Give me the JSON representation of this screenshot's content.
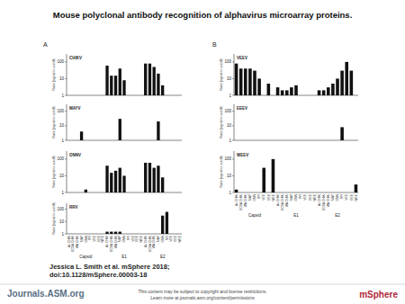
{
  "title": "Mouse polyclonal antibody recognition of alphavirus microarray proteins.",
  "panels": [
    "A",
    "B"
  ],
  "citation": [
    "Jessica L. Smith et al. mSphere 2018;",
    "doi:10.1128/mSphere.00003-18"
  ],
  "publisher": "Journals.ASM.org",
  "notice": [
    "This content may be subject to copyright and license restrictions.",
    "Learn more at journals.asm.org/content/permissions"
  ],
  "journal": "mSphere",
  "chart_data": [
    {
      "type": "bar",
      "title": "CHIKV",
      "y_label": "Ratio (signal-to-cutoff)",
      "log": "y",
      "color": "#111111",
      "tick_labels": "y",
      "categories": [
        "As CHIK",
        "ECSA CHIK",
        "WA CHIK",
        "MAY",
        "ONN",
        "RR",
        "VEE",
        "EEE",
        "WEE",
        "As CHIK",
        "ECSA CHIK",
        "WA CHIK",
        "MAY",
        "ONN",
        "RR",
        "VEE",
        "EEE",
        "WEE",
        "As CHIK",
        "ECSA CHIK",
        "WA CHIK",
        "MAY",
        "ONN",
        "RR",
        "VEE",
        "EEE",
        "WEE"
      ],
      "values": [
        1,
        1,
        1,
        1,
        1,
        1,
        1,
        1,
        1,
        60,
        15,
        15,
        40,
        8,
        1,
        1,
        1,
        1,
        80,
        80,
        50,
        20,
        4,
        1,
        1,
        1,
        1
      ],
      "ylim": [
        1,
        300
      ],
      "yticks": [
        1,
        10,
        100
      ]
    },
    {
      "type": "bar",
      "title": "MAYV",
      "y_label": "Ratio (signal-to-cutoff)",
      "log": "y",
      "color": "#111111",
      "tick_labels": "y",
      "categories": [
        "As CHIK",
        "ECSA CHIK",
        "WA CHIK",
        "MAY",
        "ONN",
        "RR",
        "VEE",
        "EEE",
        "WEE",
        "As CHIK",
        "ECSA CHIK",
        "WA CHIK",
        "MAY",
        "ONN",
        "RR",
        "VEE",
        "EEE",
        "WEE",
        "As CHIK",
        "ECSA CHIK",
        "WA CHIK",
        "MAY",
        "ONN",
        "RR",
        "VEE",
        "EEE",
        "WEE"
      ],
      "values": [
        1,
        1,
        1,
        4,
        1,
        1,
        1,
        1,
        1,
        1,
        1,
        1,
        30,
        1,
        1,
        1,
        1,
        1,
        1,
        1,
        1,
        20,
        1,
        1,
        1,
        1,
        1
      ],
      "ylim": [
        1,
        300
      ],
      "yticks": [
        1,
        10,
        100
      ]
    },
    {
      "type": "bar",
      "title": "ONNV",
      "y_label": "Ratio (signal-to-cutoff)",
      "log": "y",
      "color": "#111111",
      "tick_labels": "y",
      "categories": [
        "As CHIK",
        "ECSA CHIK",
        "WA CHIK",
        "MAY",
        "ONN",
        "RR",
        "VEE",
        "EEE",
        "WEE",
        "As CHIK",
        "ECSA CHIK",
        "WA CHIK",
        "MAY",
        "ONN",
        "RR",
        "VEE",
        "EEE",
        "WEE",
        "As CHIK",
        "ECSA CHIK",
        "WA CHIK",
        "MAY",
        "ONN",
        "RR",
        "VEE",
        "EEE",
        "WEE"
      ],
      "values": [
        1,
        1,
        1,
        1,
        1.5,
        1,
        1,
        1,
        1,
        40,
        15,
        20,
        30,
        10,
        1,
        1,
        1,
        1,
        60,
        60,
        30,
        40,
        8,
        1,
        1,
        1,
        1
      ],
      "ylim": [
        1,
        300
      ],
      "yticks": [
        1,
        10,
        100
      ]
    },
    {
      "type": "bar",
      "title": "RRV",
      "y_label": "Ratio (signal-to-cutoff)",
      "log": "y",
      "color": "#111111",
      "categories": [
        "As CHIK",
        "ECSA CHIK",
        "WA CHIK",
        "MAY",
        "ONN",
        "RR",
        "VEE",
        "EEE",
        "WEE",
        "As CHIK",
        "ECSA CHIK",
        "WA CHIK",
        "MAY",
        "ONN",
        "RR",
        "VEE",
        "EEE",
        "WEE",
        "As CHIK",
        "ECSA CHIK",
        "WA CHIK",
        "MAY",
        "ONN",
        "RR",
        "VEE",
        "EEE",
        "WEE"
      ],
      "values": [
        1,
        1,
        1,
        1,
        1,
        1,
        1,
        1,
        1,
        1.5,
        1.5,
        1.5,
        1.5,
        1,
        1,
        1,
        1,
        1,
        1,
        1,
        1,
        1,
        30,
        60,
        1,
        1,
        1
      ],
      "ylim": [
        1,
        300
      ],
      "yticks": [
        1,
        10,
        100
      ],
      "annotations": [
        "Capsid",
        "E1",
        "E2"
      ]
    },
    {
      "type": "bar",
      "title": "VEEV",
      "y_label": "Ratio (signal-to-cutoff)",
      "log": "y",
      "color": "#111111",
      "tick_labels": "y",
      "categories": [
        "As CHIK",
        "ECSA CHIK",
        "WA CHIK",
        "MAY",
        "ONN",
        "RR",
        "VEE",
        "EEE",
        "WEE",
        "As CHIK",
        "ECSA CHIK",
        "WA CHIK",
        "MAY",
        "ONN",
        "RR",
        "VEE",
        "EEE",
        "WEE",
        "As CHIK",
        "ECSA CHIK",
        "WA CHIK",
        "MAY",
        "ONN",
        "RR",
        "VEE",
        "EEE",
        "WEE"
      ],
      "values": [
        80,
        40,
        40,
        40,
        30,
        10,
        1,
        5,
        1,
        3,
        2,
        2,
        3,
        4,
        1,
        1,
        1,
        1,
        2,
        2,
        3,
        5,
        10,
        30,
        100,
        30,
        1
      ],
      "ylim": [
        1,
        300
      ],
      "yticks": [
        1,
        10,
        100
      ]
    },
    {
      "type": "bar",
      "title": "EEEV",
      "y_label": "Ratio (signal-to-cutoff)",
      "log": "y",
      "color": "#111111",
      "tick_labels": "y",
      "categories": [
        "As CHIK",
        "ECSA CHIK",
        "WA CHIK",
        "MAY",
        "ONN",
        "RR",
        "VEE",
        "EEE",
        "WEE",
        "As CHIK",
        "ECSA CHIK",
        "WA CHIK",
        "MAY",
        "ONN",
        "RR",
        "VEE",
        "EEE",
        "WEE",
        "As CHIK",
        "ECSA CHIK",
        "WA CHIK",
        "MAY",
        "ONN",
        "RR",
        "VEE",
        "EEE",
        "WEE"
      ],
      "values": [
        1,
        1,
        1,
        1,
        1,
        1,
        1,
        1,
        1,
        1,
        1,
        1,
        1,
        1,
        1,
        1,
        1,
        1,
        1,
        1,
        1,
        1,
        1,
        8,
        1,
        1,
        1
      ],
      "ylim": [
        1,
        300
      ],
      "yticks": [
        1,
        10,
        100
      ]
    },
    {
      "type": "bar",
      "title": "WEEV",
      "y_label": "Ratio (signal-to-cutoff)",
      "log": "y",
      "color": "#111111",
      "categories": [
        "As CHIK",
        "ECSA CHIK",
        "WA CHIK",
        "MAY",
        "ONN",
        "RR",
        "VEE",
        "EEE",
        "WEE",
        "As CHIK",
        "ECSA CHIK",
        "WA CHIK",
        "MAY",
        "ONN",
        "RR",
        "VEE",
        "EEE",
        "WEE",
        "As CHIK",
        "ECSA CHIK",
        "WA CHIK",
        "MAY",
        "ONN",
        "RR",
        "VEE",
        "EEE",
        "WEE"
      ],
      "values": [
        1.5,
        1,
        1,
        1,
        1,
        1,
        30,
        1,
        100,
        1,
        1,
        1,
        1,
        1,
        1,
        1,
        1,
        1,
        1,
        1,
        1,
        1,
        1,
        1,
        1,
        1,
        3
      ],
      "ylim": [
        1,
        300
      ],
      "yticks": [
        1,
        10,
        100
      ],
      "annotations": [
        "Capsid",
        "E1",
        "E2"
      ]
    }
  ]
}
